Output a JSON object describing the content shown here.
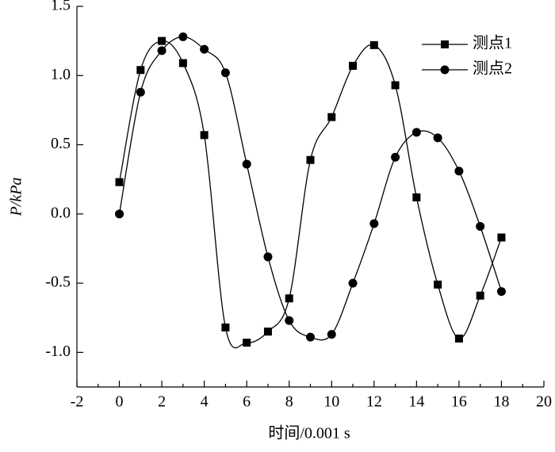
{
  "chart_data": {
    "type": "line",
    "x_label": "时间/0.001 s",
    "y_label": "P/kPa",
    "x": [
      0,
      1,
      2,
      3,
      4,
      5,
      6,
      7,
      8,
      9,
      10,
      11,
      12,
      13,
      14,
      15,
      16,
      17,
      18
    ],
    "series": [
      {
        "name": "测点1",
        "color": "#000000",
        "marker": "square",
        "values": [
          0.23,
          1.04,
          1.25,
          1.09,
          0.57,
          -0.82,
          -0.93,
          -0.85,
          -0.61,
          0.39,
          0.7,
          1.07,
          1.22,
          0.93,
          0.12,
          -0.51,
          -0.9,
          -0.59,
          -0.17
        ]
      },
      {
        "name": "测点2",
        "color": "#000000",
        "marker": "circle",
        "values": [
          0.0,
          0.88,
          1.18,
          1.28,
          1.19,
          1.02,
          0.36,
          -0.31,
          -0.77,
          -0.89,
          -0.87,
          -0.5,
          -0.07,
          0.41,
          0.59,
          0.55,
          0.31,
          -0.09,
          -0.56
        ]
      }
    ],
    "xlim": [
      -2,
      20
    ],
    "xticks": [
      -2,
      0,
      2,
      4,
      6,
      8,
      10,
      12,
      14,
      16,
      18,
      20
    ],
    "ylim": [
      -1.25,
      1.5
    ],
    "yticks": [
      {
        "value": -1.0,
        "label": "-1.0"
      },
      -0.5,
      {
        "value": 0.0,
        "label": "0.0"
      },
      0.5,
      {
        "value": 1.0,
        "label": "1.0"
      },
      1.5
    ],
    "legend": "upper right"
  }
}
